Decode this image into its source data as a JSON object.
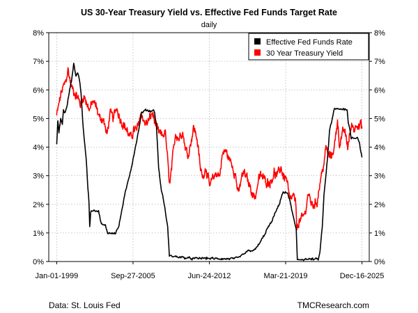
{
  "chart_data": {
    "type": "line",
    "title": "US 30-Year Treasury Yield vs. Effective Fed Funds Target Rate",
    "subtitle": "daily",
    "xlabel": "",
    "ylabel": "",
    "x_ticks": [
      {
        "label": "Jan-01-1999",
        "year": 1999.0
      },
      {
        "label": "Sep-27-2005",
        "year": 2005.74
      },
      {
        "label": "Jun-24-2012",
        "year": 2012.48
      },
      {
        "label": "Mar-21-2019",
        "year": 2019.22
      },
      {
        "label": "Dec-16-2025",
        "year": 2025.96
      }
    ],
    "xlim": [
      1998.3,
      2026.6
    ],
    "ylim": [
      0,
      8
    ],
    "y_ticks": [
      {
        "value": 0,
        "label": "0%"
      },
      {
        "value": 1,
        "label": "1%"
      },
      {
        "value": 2,
        "label": "2%"
      },
      {
        "value": 3,
        "label": "3%"
      },
      {
        "value": 4,
        "label": "4%"
      },
      {
        "value": 5,
        "label": "5%"
      },
      {
        "value": 6,
        "label": "6%"
      },
      {
        "value": 7,
        "label": "7%"
      },
      {
        "value": 8,
        "label": "8%"
      }
    ],
    "grid": true,
    "legend_position": "top-right",
    "series": [
      {
        "name": "Effective Fed Funds Rate",
        "color": "#000000",
        "points": [
          [
            1999.0,
            4.1
          ],
          [
            1999.1,
            4.9
          ],
          [
            1999.2,
            4.5
          ],
          [
            1999.35,
            5.0
          ],
          [
            1999.5,
            4.8
          ],
          [
            1999.6,
            5.3
          ],
          [
            1999.75,
            5.2
          ],
          [
            1999.9,
            5.4
          ],
          [
            2000.1,
            5.9
          ],
          [
            2000.3,
            6.3
          ],
          [
            2000.5,
            6.9
          ],
          [
            2000.7,
            6.5
          ],
          [
            2000.85,
            6.6
          ],
          [
            2001.0,
            6.4
          ],
          [
            2001.15,
            5.9
          ],
          [
            2001.3,
            4.9
          ],
          [
            2001.45,
            4.2
          ],
          [
            2001.6,
            3.6
          ],
          [
            2001.75,
            2.6
          ],
          [
            2001.85,
            2.1
          ],
          [
            2001.92,
            1.2
          ],
          [
            2002.0,
            1.75
          ],
          [
            2002.3,
            1.8
          ],
          [
            2002.7,
            1.75
          ],
          [
            2002.95,
            1.3
          ],
          [
            2003.3,
            1.25
          ],
          [
            2003.5,
            1.0
          ],
          [
            2003.8,
            1.0
          ],
          [
            2004.2,
            1.0
          ],
          [
            2004.5,
            1.25
          ],
          [
            2004.8,
            1.9
          ],
          [
            2005.0,
            2.3
          ],
          [
            2005.3,
            2.8
          ],
          [
            2005.6,
            3.3
          ],
          [
            2005.9,
            3.9
          ],
          [
            2006.2,
            4.5
          ],
          [
            2006.5,
            5.2
          ],
          [
            2006.9,
            5.3
          ],
          [
            2007.3,
            5.25
          ],
          [
            2007.6,
            5.3
          ],
          [
            2007.8,
            4.8
          ],
          [
            2008.0,
            3.3
          ],
          [
            2008.2,
            2.6
          ],
          [
            2008.5,
            2.0
          ],
          [
            2008.8,
            1.2
          ],
          [
            2008.95,
            0.2
          ],
          [
            2009.3,
            0.18
          ],
          [
            2010.0,
            0.15
          ],
          [
            2011.0,
            0.1
          ],
          [
            2012.0,
            0.12
          ],
          [
            2013.0,
            0.1
          ],
          [
            2014.0,
            0.09
          ],
          [
            2015.0,
            0.12
          ],
          [
            2015.95,
            0.38
          ],
          [
            2016.5,
            0.4
          ],
          [
            2016.95,
            0.66
          ],
          [
            2017.3,
            0.9
          ],
          [
            2017.6,
            1.15
          ],
          [
            2018.0,
            1.4
          ],
          [
            2018.3,
            1.7
          ],
          [
            2018.6,
            1.95
          ],
          [
            2018.95,
            2.4
          ],
          [
            2019.4,
            2.4
          ],
          [
            2019.6,
            2.1
          ],
          [
            2019.9,
            1.55
          ],
          [
            2020.15,
            1.1
          ],
          [
            2020.25,
            0.07
          ],
          [
            2021.0,
            0.08
          ],
          [
            2022.1,
            0.08
          ],
          [
            2022.25,
            0.33
          ],
          [
            2022.45,
            1.2
          ],
          [
            2022.6,
            2.3
          ],
          [
            2022.8,
            3.1
          ],
          [
            2022.95,
            3.8
          ],
          [
            2023.1,
            4.6
          ],
          [
            2023.3,
            4.9
          ],
          [
            2023.5,
            5.33
          ],
          [
            2024.0,
            5.33
          ],
          [
            2024.65,
            5.33
          ],
          [
            2024.75,
            4.83
          ],
          [
            2024.9,
            4.6
          ],
          [
            2025.0,
            4.33
          ],
          [
            2025.6,
            4.33
          ],
          [
            2025.75,
            4.1
          ],
          [
            2025.96,
            3.64
          ]
        ]
      },
      {
        "name": "30 Year Treasury Yield",
        "color": "#ff0000",
        "points": [
          [
            1999.0,
            5.1
          ],
          [
            1999.2,
            5.5
          ],
          [
            1999.4,
            5.9
          ],
          [
            1999.6,
            6.1
          ],
          [
            1999.8,
            6.3
          ],
          [
            2000.0,
            6.7
          ],
          [
            2000.1,
            6.5
          ],
          [
            2000.3,
            6.1
          ],
          [
            2000.6,
            5.9
          ],
          [
            2000.9,
            5.7
          ],
          [
            2001.1,
            5.5
          ],
          [
            2001.4,
            5.8
          ],
          [
            2001.7,
            5.5
          ],
          [
            2001.9,
            5.3
          ],
          [
            2002.2,
            5.6
          ],
          [
            2002.5,
            5.4
          ],
          [
            2002.8,
            5.0
          ],
          [
            2003.1,
            5.0
          ],
          [
            2003.45,
            4.4
          ],
          [
            2003.7,
            5.2
          ],
          [
            2004.0,
            5.0
          ],
          [
            2004.3,
            5.4
          ],
          [
            2004.6,
            5.0
          ],
          [
            2004.9,
            4.8
          ],
          [
            2005.2,
            4.6
          ],
          [
            2005.5,
            4.3
          ],
          [
            2005.8,
            4.6
          ],
          [
            2006.1,
            4.6
          ],
          [
            2006.45,
            5.2
          ],
          [
            2006.8,
            4.8
          ],
          [
            2007.1,
            4.9
          ],
          [
            2007.45,
            5.2
          ],
          [
            2007.8,
            4.7
          ],
          [
            2008.0,
            4.5
          ],
          [
            2008.3,
            4.4
          ],
          [
            2008.6,
            4.5
          ],
          [
            2008.9,
            3.0
          ],
          [
            2009.0,
            2.7
          ],
          [
            2009.3,
            3.8
          ],
          [
            2009.5,
            4.5
          ],
          [
            2009.8,
            4.3
          ],
          [
            2010.1,
            4.6
          ],
          [
            2010.35,
            4.0
          ],
          [
            2010.6,
            3.7
          ],
          [
            2010.9,
            4.3
          ],
          [
            2011.1,
            4.7
          ],
          [
            2011.4,
            4.3
          ],
          [
            2011.7,
            3.2
          ],
          [
            2011.9,
            3.0
          ],
          [
            2012.2,
            3.3
          ],
          [
            2012.5,
            2.6
          ],
          [
            2012.8,
            2.9
          ],
          [
            2013.1,
            3.1
          ],
          [
            2013.4,
            3.0
          ],
          [
            2013.6,
            3.7
          ],
          [
            2013.9,
            3.9
          ],
          [
            2014.2,
            3.6
          ],
          [
            2014.5,
            3.4
          ],
          [
            2014.8,
            3.0
          ],
          [
            2015.05,
            2.3
          ],
          [
            2015.3,
            2.9
          ],
          [
            2015.55,
            3.1
          ],
          [
            2015.8,
            2.9
          ],
          [
            2016.1,
            2.6
          ],
          [
            2016.5,
            2.2
          ],
          [
            2016.85,
            2.9
          ],
          [
            2017.1,
            3.0
          ],
          [
            2017.5,
            2.8
          ],
          [
            2017.9,
            2.8
          ],
          [
            2018.2,
            3.1
          ],
          [
            2018.5,
            3.0
          ],
          [
            2018.8,
            3.3
          ],
          [
            2019.0,
            3.0
          ],
          [
            2019.3,
            2.9
          ],
          [
            2019.6,
            2.1
          ],
          [
            2019.9,
            2.3
          ],
          [
            2020.1,
            2.0
          ],
          [
            2020.2,
            1.2
          ],
          [
            2020.4,
            1.4
          ],
          [
            2020.7,
            1.5
          ],
          [
            2020.95,
            1.7
          ],
          [
            2021.2,
            2.4
          ],
          [
            2021.5,
            2.0
          ],
          [
            2021.8,
            2.0
          ],
          [
            2022.0,
            2.1
          ],
          [
            2022.3,
            2.9
          ],
          [
            2022.5,
            3.2
          ],
          [
            2022.8,
            4.0
          ],
          [
            2023.0,
            3.7
          ],
          [
            2023.3,
            3.7
          ],
          [
            2023.6,
            4.2
          ],
          [
            2023.8,
            5.0
          ],
          [
            2023.95,
            4.1
          ],
          [
            2024.2,
            4.4
          ],
          [
            2024.4,
            4.6
          ],
          [
            2024.7,
            4.0
          ],
          [
            2024.9,
            4.5
          ],
          [
            2025.1,
            4.8
          ],
          [
            2025.3,
            4.6
          ],
          [
            2025.5,
            4.9
          ],
          [
            2025.7,
            4.7
          ],
          [
            2025.85,
            4.8
          ],
          [
            2025.96,
            4.65
          ]
        ]
      }
    ]
  },
  "footer": {
    "source": "Data: St. Louis Fed",
    "credit": "TMCResearch.com"
  }
}
